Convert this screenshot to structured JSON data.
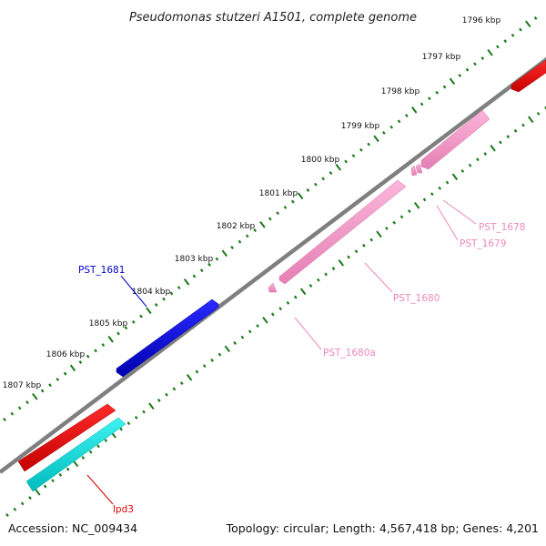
{
  "title": "Pseudomonas stutzeri A1501, complete genome",
  "accession": "Accession: NC_009434",
  "summary": "Topology: circular; Length: 4,567,418 bp; Genes: 4,201",
  "kbp_labels": [
    "1796 kbp",
    "1797 kbp",
    "1798 kbp",
    "1799 kbp",
    "1800 kbp",
    "1801 kbp",
    "1802 kbp",
    "1803 kbp",
    "1804 kbp",
    "1805 kbp",
    "1806 kbp",
    "1807 kbp"
  ],
  "genes": [
    {
      "name": "PST_1681",
      "color": "#0000cc"
    },
    {
      "name": "PST_1680",
      "color": "#ee88bb"
    },
    {
      "name": "PST_1680a",
      "color": "#ee88bb"
    },
    {
      "name": "PST_1679",
      "color": "#ee88bb"
    },
    {
      "name": "PST_1678",
      "color": "#ee88bb"
    },
    {
      "name": "lpd3",
      "color": "#dd0000"
    }
  ],
  "colors": {
    "backbone": "#7f7f7f",
    "ticks": "#1a7a1a",
    "forward_red": "#ee0000",
    "cyan_feature": "#00dddd",
    "blue_feature": "#0000dd",
    "pink_feature": "#f49ac8"
  }
}
